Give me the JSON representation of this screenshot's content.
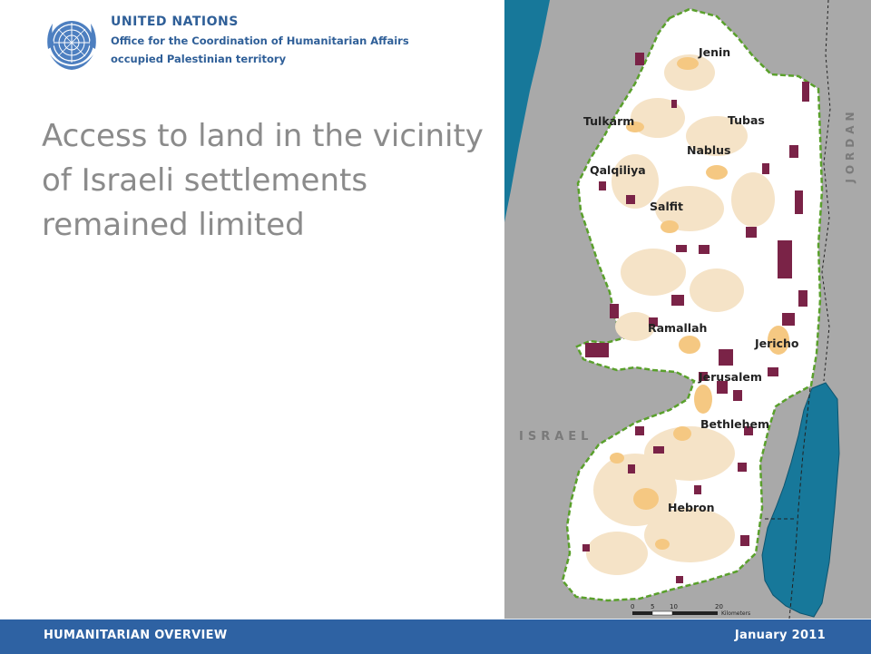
{
  "header": {
    "org_name": "UNITED NATIONS",
    "office": "Office for the Coordination of Humanitarian Affairs",
    "territory": "occupied Palestinian territory"
  },
  "title_lines": [
    "Access to land in the vicinity",
    "of Israeli settlements",
    "remained limited"
  ],
  "map": {
    "country_labels": {
      "east": "JORDAN",
      "west": "ISRAEL"
    },
    "city_labels": {
      "jenin": "Jenin",
      "tulkarm": "Tulkarm",
      "tubas": "Tubas",
      "nablus": "Nablus",
      "qalqiliya": "Qalqiliya",
      "salfit": "Salfit",
      "ramallah": "Ramallah",
      "jericho": "Jericho",
      "jerusalem": "Jerusalem",
      "bethlehem": "Bethlehem",
      "hebron": "Hebron"
    },
    "scale": {
      "ticks": [
        "0",
        "5",
        "10",
        "20"
      ],
      "unit": "Kilometers"
    },
    "colors": {
      "background": "#a9a9a9",
      "sea": "#17789a",
      "territory": "#ffffff",
      "boundary": "#5aa02c",
      "settlement": "#7a2347",
      "built_up": "#f5c882",
      "agricultural": "#f5e3c7"
    }
  },
  "footer": {
    "left": "HUMANITARIAN OVERVIEW",
    "right": "January 2011"
  }
}
